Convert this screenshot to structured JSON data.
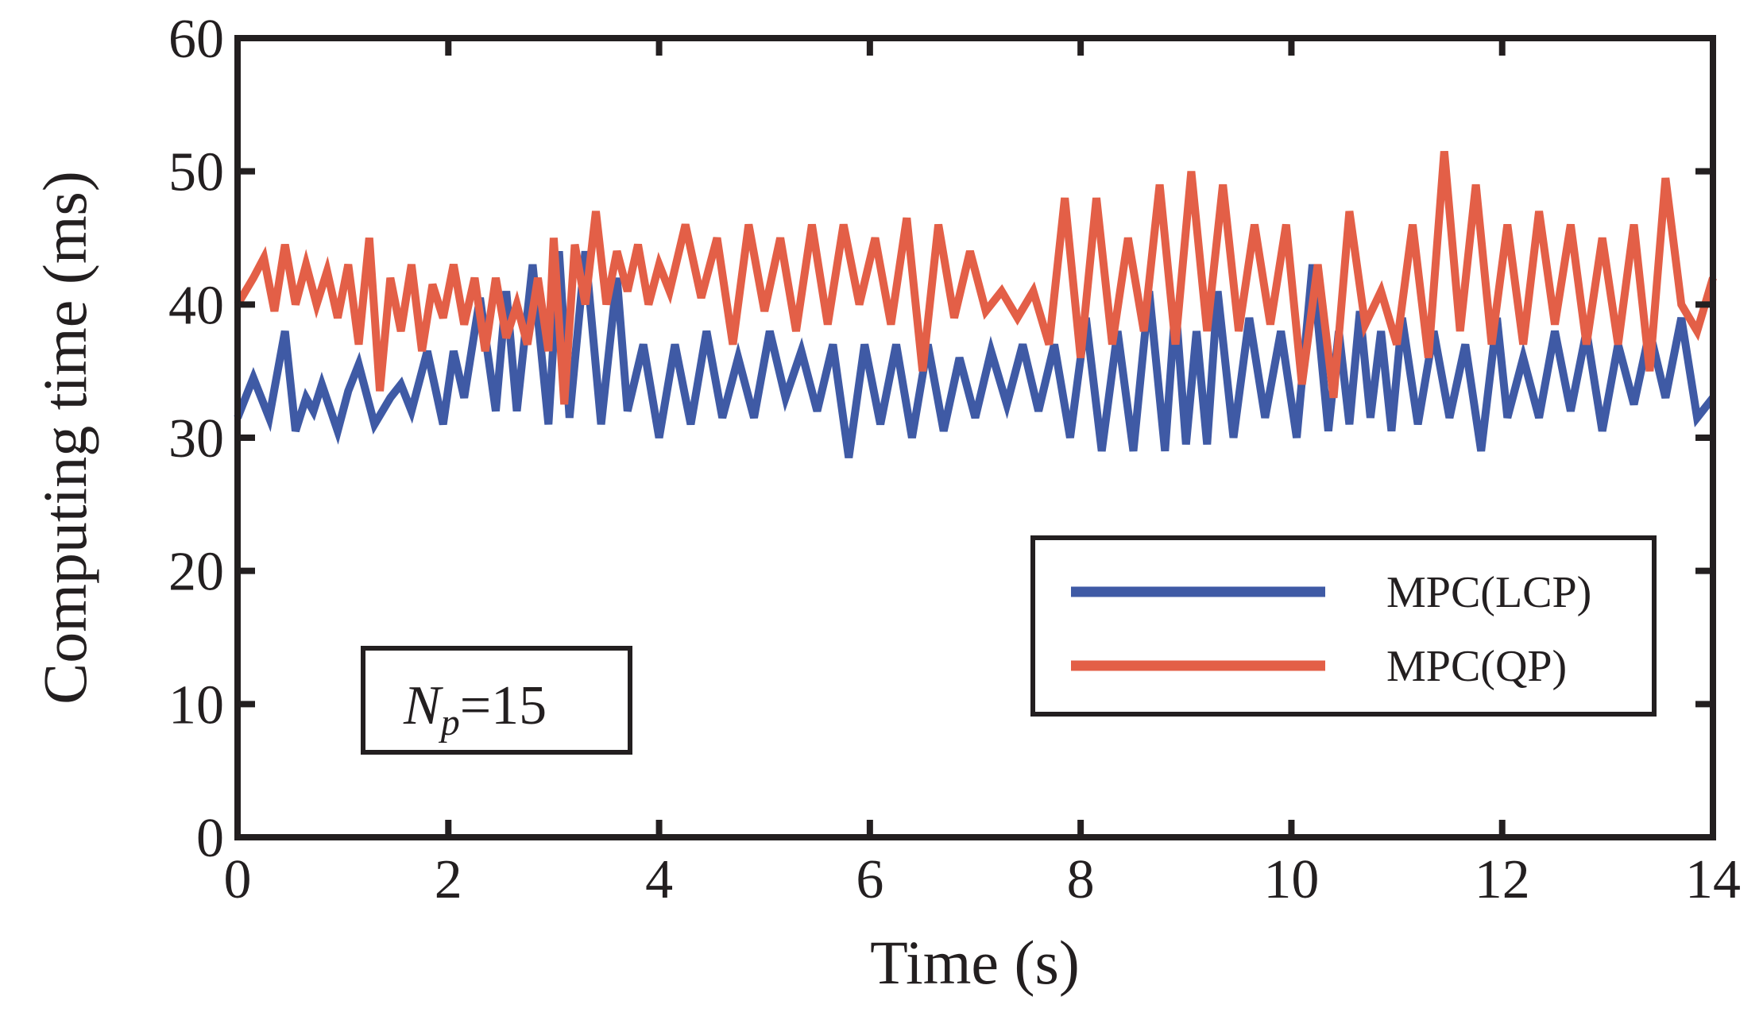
{
  "chart_data": {
    "type": "line",
    "title": "",
    "xlabel": "Time (s)",
    "ylabel": "Computing time (ms)",
    "xlim": [
      0,
      14
    ],
    "ylim": [
      0,
      60
    ],
    "xticks": [
      0,
      2,
      4,
      6,
      8,
      10,
      12,
      14
    ],
    "yticks": [
      0,
      10,
      20,
      30,
      40,
      50,
      60
    ],
    "grid": false,
    "legend_position": "right",
    "annotation": {
      "symbol": "N",
      "subscript": "p",
      "text": "=15"
    },
    "series": [
      {
        "name": "MPC(LCP)",
        "color": "#3f5aa5",
        "x": [
          0,
          0.15,
          0.3,
          0.45,
          0.55,
          0.65,
          0.72,
          0.8,
          0.95,
          1.05,
          1.15,
          1.3,
          1.45,
          1.55,
          1.65,
          1.8,
          1.95,
          2.05,
          2.15,
          2.3,
          2.45,
          2.55,
          2.65,
          2.8,
          2.95,
          3.05,
          3.15,
          3.3,
          3.45,
          3.6,
          3.7,
          3.85,
          4.0,
          4.15,
          4.3,
          4.45,
          4.6,
          4.75,
          4.9,
          5.05,
          5.2,
          5.35,
          5.5,
          5.65,
          5.8,
          5.95,
          6.1,
          6.25,
          6.4,
          6.55,
          6.7,
          6.85,
          7.0,
          7.15,
          7.3,
          7.45,
          7.6,
          7.75,
          7.9,
          8.05,
          8.2,
          8.35,
          8.5,
          8.65,
          8.8,
          8.9,
          9.0,
          9.1,
          9.2,
          9.3,
          9.45,
          9.6,
          9.75,
          9.9,
          10.05,
          10.2,
          10.35,
          10.45,
          10.55,
          10.65,
          10.75,
          10.85,
          10.95,
          11.05,
          11.2,
          11.35,
          11.5,
          11.65,
          11.8,
          11.95,
          12.05,
          12.2,
          12.35,
          12.5,
          12.65,
          12.8,
          12.95,
          13.1,
          13.25,
          13.4,
          13.55,
          13.7,
          13.85,
          14.0
        ],
        "values": [
          31.5,
          34.5,
          31.5,
          38,
          30.5,
          33,
          32,
          34,
          30.5,
          33.5,
          35.5,
          31,
          33,
          34,
          32,
          36.5,
          31,
          36.5,
          33,
          40.5,
          32,
          41,
          32,
          43,
          31,
          44,
          31.5,
          44,
          31,
          42,
          32,
          37,
          30,
          37,
          31,
          38,
          31.5,
          36,
          31.5,
          38,
          33,
          36.5,
          32,
          37,
          28.5,
          37,
          31,
          37,
          30,
          37,
          30.5,
          36,
          31.5,
          36.5,
          32.5,
          37,
          32,
          37,
          30,
          39,
          29,
          38,
          29,
          41,
          29,
          40,
          29.5,
          38,
          29.5,
          41,
          30,
          39,
          31.5,
          38,
          30,
          43,
          30.5,
          38,
          31,
          39.5,
          31.5,
          38,
          30.5,
          39,
          31,
          38,
          31.5,
          37,
          29,
          39,
          31.5,
          36,
          31.5,
          38,
          32,
          38,
          30.5,
          37,
          32.5,
          38,
          33,
          39,
          31.5,
          33
        ]
      },
      {
        "name": "MPC(QP)",
        "color": "#e35f47",
        "x": [
          0,
          0.15,
          0.25,
          0.35,
          0.45,
          0.55,
          0.65,
          0.75,
          0.85,
          0.95,
          1.05,
          1.15,
          1.25,
          1.35,
          1.45,
          1.55,
          1.65,
          1.75,
          1.85,
          1.95,
          2.05,
          2.15,
          2.25,
          2.35,
          2.45,
          2.55,
          2.65,
          2.75,
          2.85,
          2.95,
          3.0,
          3.1,
          3.2,
          3.3,
          3.4,
          3.5,
          3.6,
          3.7,
          3.8,
          3.9,
          4.0,
          4.1,
          4.25,
          4.4,
          4.55,
          4.7,
          4.85,
          5.0,
          5.15,
          5.3,
          5.45,
          5.6,
          5.75,
          5.9,
          6.05,
          6.2,
          6.35,
          6.5,
          6.65,
          6.8,
          6.95,
          7.1,
          7.25,
          7.4,
          7.55,
          7.7,
          7.85,
          8.0,
          8.15,
          8.3,
          8.45,
          8.6,
          8.75,
          8.9,
          9.05,
          9.2,
          9.35,
          9.5,
          9.65,
          9.8,
          9.95,
          10.1,
          10.25,
          10.4,
          10.55,
          10.7,
          10.85,
          11.0,
          11.15,
          11.3,
          11.45,
          11.6,
          11.75,
          11.9,
          12.05,
          12.2,
          12.35,
          12.5,
          12.65,
          12.8,
          12.95,
          13.1,
          13.25,
          13.4,
          13.55,
          13.7,
          13.85,
          14.0
        ],
        "values": [
          40,
          42,
          43.5,
          39.5,
          44.5,
          40,
          43,
          40,
          42.5,
          39,
          43,
          37,
          45,
          33.5,
          42,
          38,
          43,
          36.5,
          41.5,
          39,
          43,
          38.5,
          42,
          36.5,
          42,
          37.5,
          40,
          37,
          42,
          36.5,
          45,
          32.5,
          44.5,
          40,
          47,
          40,
          44,
          41,
          44.5,
          40,
          43,
          41,
          46,
          40.5,
          45,
          37,
          46,
          39.5,
          45,
          38,
          46,
          38.5,
          46,
          40,
          45,
          38.5,
          46.5,
          35,
          46,
          39,
          44,
          39.5,
          41,
          39,
          41,
          37,
          48,
          36,
          48,
          37,
          45,
          38,
          49,
          37,
          50,
          38,
          49,
          38,
          46,
          38.5,
          46,
          34,
          43,
          33,
          47,
          38.5,
          41,
          37,
          46,
          36,
          51.5,
          38,
          49,
          37,
          46,
          37,
          47,
          38.5,
          46,
          37,
          45,
          37,
          46,
          35,
          49.5,
          40,
          38,
          42
        ]
      }
    ]
  }
}
